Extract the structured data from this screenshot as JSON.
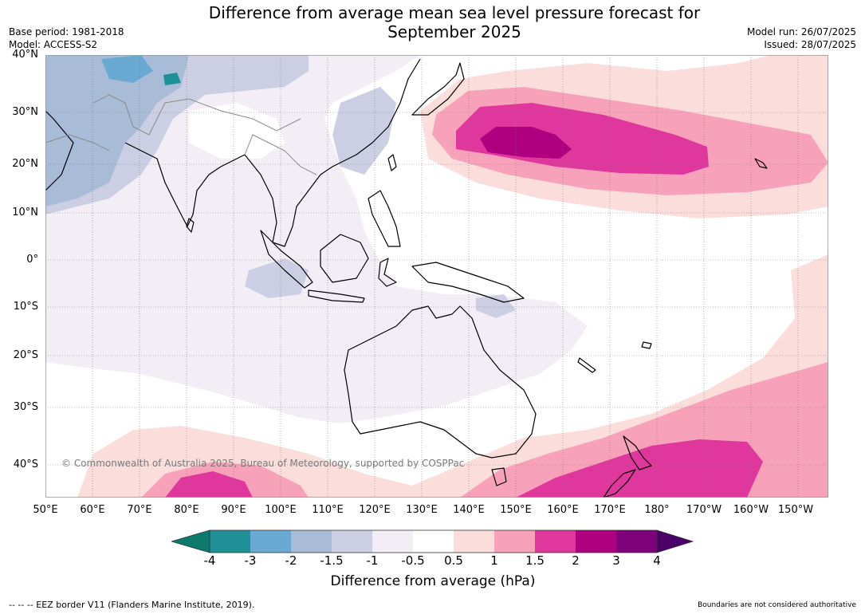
{
  "title": {
    "line1": "Difference from average mean sea level pressure forecast for",
    "line2": "September 2025"
  },
  "meta_left": {
    "base_period": "Base period: 1981-2018",
    "model": "Model: ACCESS-S2"
  },
  "meta_right": {
    "model_run": "Model run: 26/07/2025",
    "issued": "Issued: 28/07/2025"
  },
  "map": {
    "lat_labels": [
      "40°N",
      "30°N",
      "20°N",
      "10°N",
      "0°",
      "10°S",
      "20°S",
      "30°S",
      "40°S"
    ],
    "lon_labels": [
      "50°E",
      "60°E",
      "70°E",
      "80°E",
      "90°E",
      "100°E",
      "110°E",
      "120°E",
      "130°E",
      "140°E",
      "150°E",
      "160°E",
      "170°E",
      "180°",
      "170°W",
      "160°W",
      "150°W"
    ],
    "copyright": "© Commonwealth of Australia 2025, Bureau of Meteorology, supported by COSPPac"
  },
  "colorbar": {
    "label": "Difference from average (hPa)",
    "ticks": [
      "-4",
      "-3",
      "-2",
      "-1.5",
      "-1",
      "-0.5",
      "0.5",
      "1",
      "1.5",
      "2",
      "3",
      "4"
    ],
    "colors": [
      "#0d7a6e",
      "#1f9095",
      "#6aaad2",
      "#a8bcd8",
      "#cccfe4",
      "#f3eef6",
      "#ffffff",
      "#fbdedc",
      "#f8a1bb",
      "#e0379c",
      "#af007f",
      "#7c017a",
      "#4a0068"
    ]
  },
  "footer": {
    "eez": "--  --  -- EEZ border V11 (Flanders Marine Institute, 2019).",
    "boundaries": "Boundaries are not considered authoritative"
  }
}
